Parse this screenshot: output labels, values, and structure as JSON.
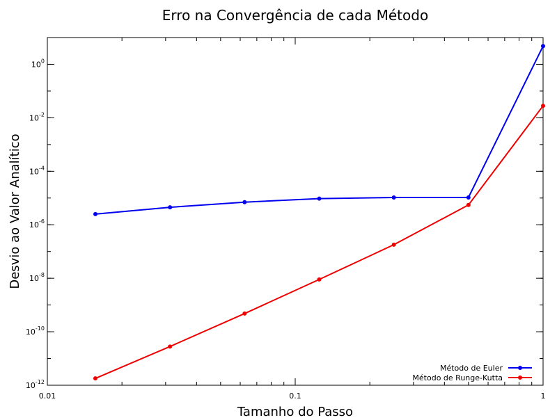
{
  "chart_data": {
    "type": "line",
    "title": "Erro na Convergência de cada Método",
    "xlabel": "Tamanho do Passo",
    "ylabel": "Desvio ao Valor Analítico",
    "x_scale": "log",
    "y_scale": "log",
    "xlim": [
      0.01,
      1
    ],
    "ylim": [
      1e-12,
      10
    ],
    "x_ticks": [
      {
        "value": 0.01,
        "label": "0.01"
      },
      {
        "value": 0.1,
        "label": "0.1"
      },
      {
        "value": 1,
        "label": "1"
      }
    ],
    "y_ticks": [
      {
        "value": 1e-12,
        "base": "10",
        "exp": "-12"
      },
      {
        "value": 1e-10,
        "base": "10",
        "exp": "-10"
      },
      {
        "value": 1e-08,
        "base": "10",
        "exp": "-8"
      },
      {
        "value": 1e-06,
        "base": "10",
        "exp": "-6"
      },
      {
        "value": 0.0001,
        "base": "10",
        "exp": "-4"
      },
      {
        "value": 0.01,
        "base": "10",
        "exp": "-2"
      },
      {
        "value": 1,
        "base": "10",
        "exp": "0"
      }
    ],
    "grid": false,
    "legend_position": "bottom-right",
    "series": [
      {
        "name": "Método de Euler",
        "color": "#0000ee",
        "x": [
          0.015625,
          0.03125,
          0.0625,
          0.125,
          0.25,
          0.5,
          1
        ],
        "y": [
          2.5e-06,
          4.5e-06,
          7e-06,
          9.5e-06,
          1.05e-05,
          1.05e-05,
          4.8
        ]
      },
      {
        "name": "Método de Runge-Kutta",
        "color": "#ee0000",
        "x": [
          0.015625,
          0.03125,
          0.0625,
          0.125,
          0.25,
          0.5,
          1
        ],
        "y": [
          1.8e-12,
          2.8e-11,
          4.8e-10,
          9e-09,
          1.8e-07,
          5.5e-06,
          0.028
        ]
      }
    ]
  }
}
